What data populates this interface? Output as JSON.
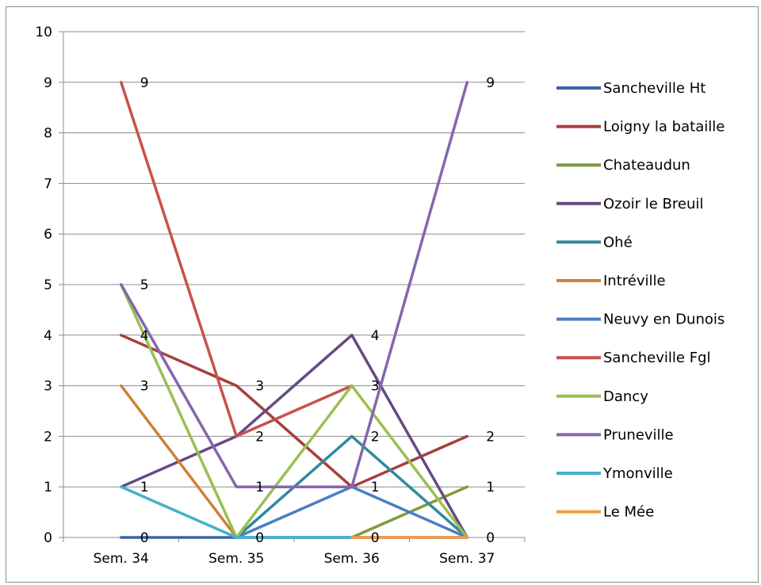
{
  "chart_data": {
    "type": "line",
    "categories": [
      "Sem. 34",
      "Sem. 35",
      "Sem. 36",
      "Sem. 37"
    ],
    "ylim": [
      0,
      10
    ],
    "yticks": [
      "0",
      "1",
      "2",
      "3",
      "4",
      "5",
      "6",
      "7",
      "8",
      "9",
      "10"
    ],
    "grid": true,
    "legend_position": "right",
    "series": [
      {
        "name": "Sancheville Ht",
        "color": "#3a64a2",
        "values": [
          0,
          0,
          0,
          0
        ]
      },
      {
        "name": "Loigny la bataille",
        "color": "#a5403c",
        "values": [
          4,
          3,
          1,
          2
        ]
      },
      {
        "name": "Chateaudun",
        "color": "#7e9a3f",
        "values": [
          null,
          null,
          0,
          1
        ]
      },
      {
        "name": "Ozoir le Breuil",
        "color": "#664a84",
        "values": [
          1,
          2,
          4,
          0
        ]
      },
      {
        "name": "Ohé",
        "color": "#31899e",
        "values": [
          null,
          0,
          2,
          0
        ]
      },
      {
        "name": "Intréville",
        "color": "#d08038",
        "values": [
          3,
          0,
          null,
          null
        ]
      },
      {
        "name": "Neuvy en Dunois",
        "color": "#4a7ec5",
        "values": [
          null,
          0,
          1,
          0
        ]
      },
      {
        "name": "Sancheville Fgl",
        "color": "#c9504b",
        "values": [
          9,
          2,
          3,
          null
        ]
      },
      {
        "name": "Dancy",
        "color": "#99c052",
        "values": [
          5,
          0,
          3,
          0
        ]
      },
      {
        "name": "Pruneville",
        "color": "#8566ad",
        "values": [
          5,
          1,
          1,
          9
        ]
      },
      {
        "name": "Ymonville",
        "color": "#45b0cb",
        "values": [
          1,
          0,
          0,
          null
        ]
      },
      {
        "name": "Le Mée",
        "color": "#f59a43",
        "values": [
          null,
          null,
          0,
          0
        ]
      }
    ],
    "data_labels": [
      {
        "cat": 0,
        "text": "9",
        "value": 9
      },
      {
        "cat": 0,
        "text": "5",
        "value": 5
      },
      {
        "cat": 0,
        "text": "4",
        "value": 4
      },
      {
        "cat": 0,
        "text": "3",
        "value": 3
      },
      {
        "cat": 0,
        "text": "1",
        "value": 1
      },
      {
        "cat": 0,
        "text": "0",
        "value": 0
      },
      {
        "cat": 1,
        "text": "3",
        "value": 3
      },
      {
        "cat": 1,
        "text": "2",
        "value": 2
      },
      {
        "cat": 1,
        "text": "1",
        "value": 1
      },
      {
        "cat": 1,
        "text": "0",
        "value": 0
      },
      {
        "cat": 2,
        "text": "4",
        "value": 4
      },
      {
        "cat": 2,
        "text": "3",
        "value": 3
      },
      {
        "cat": 2,
        "text": "2",
        "value": 2
      },
      {
        "cat": 2,
        "text": "1",
        "value": 1
      },
      {
        "cat": 2,
        "text": "0",
        "value": 0
      },
      {
        "cat": 3,
        "text": "9",
        "value": 9
      },
      {
        "cat": 3,
        "text": "2",
        "value": 2
      },
      {
        "cat": 3,
        "text": "1",
        "value": 1
      },
      {
        "cat": 3,
        "text": "0",
        "value": 0
      }
    ]
  }
}
